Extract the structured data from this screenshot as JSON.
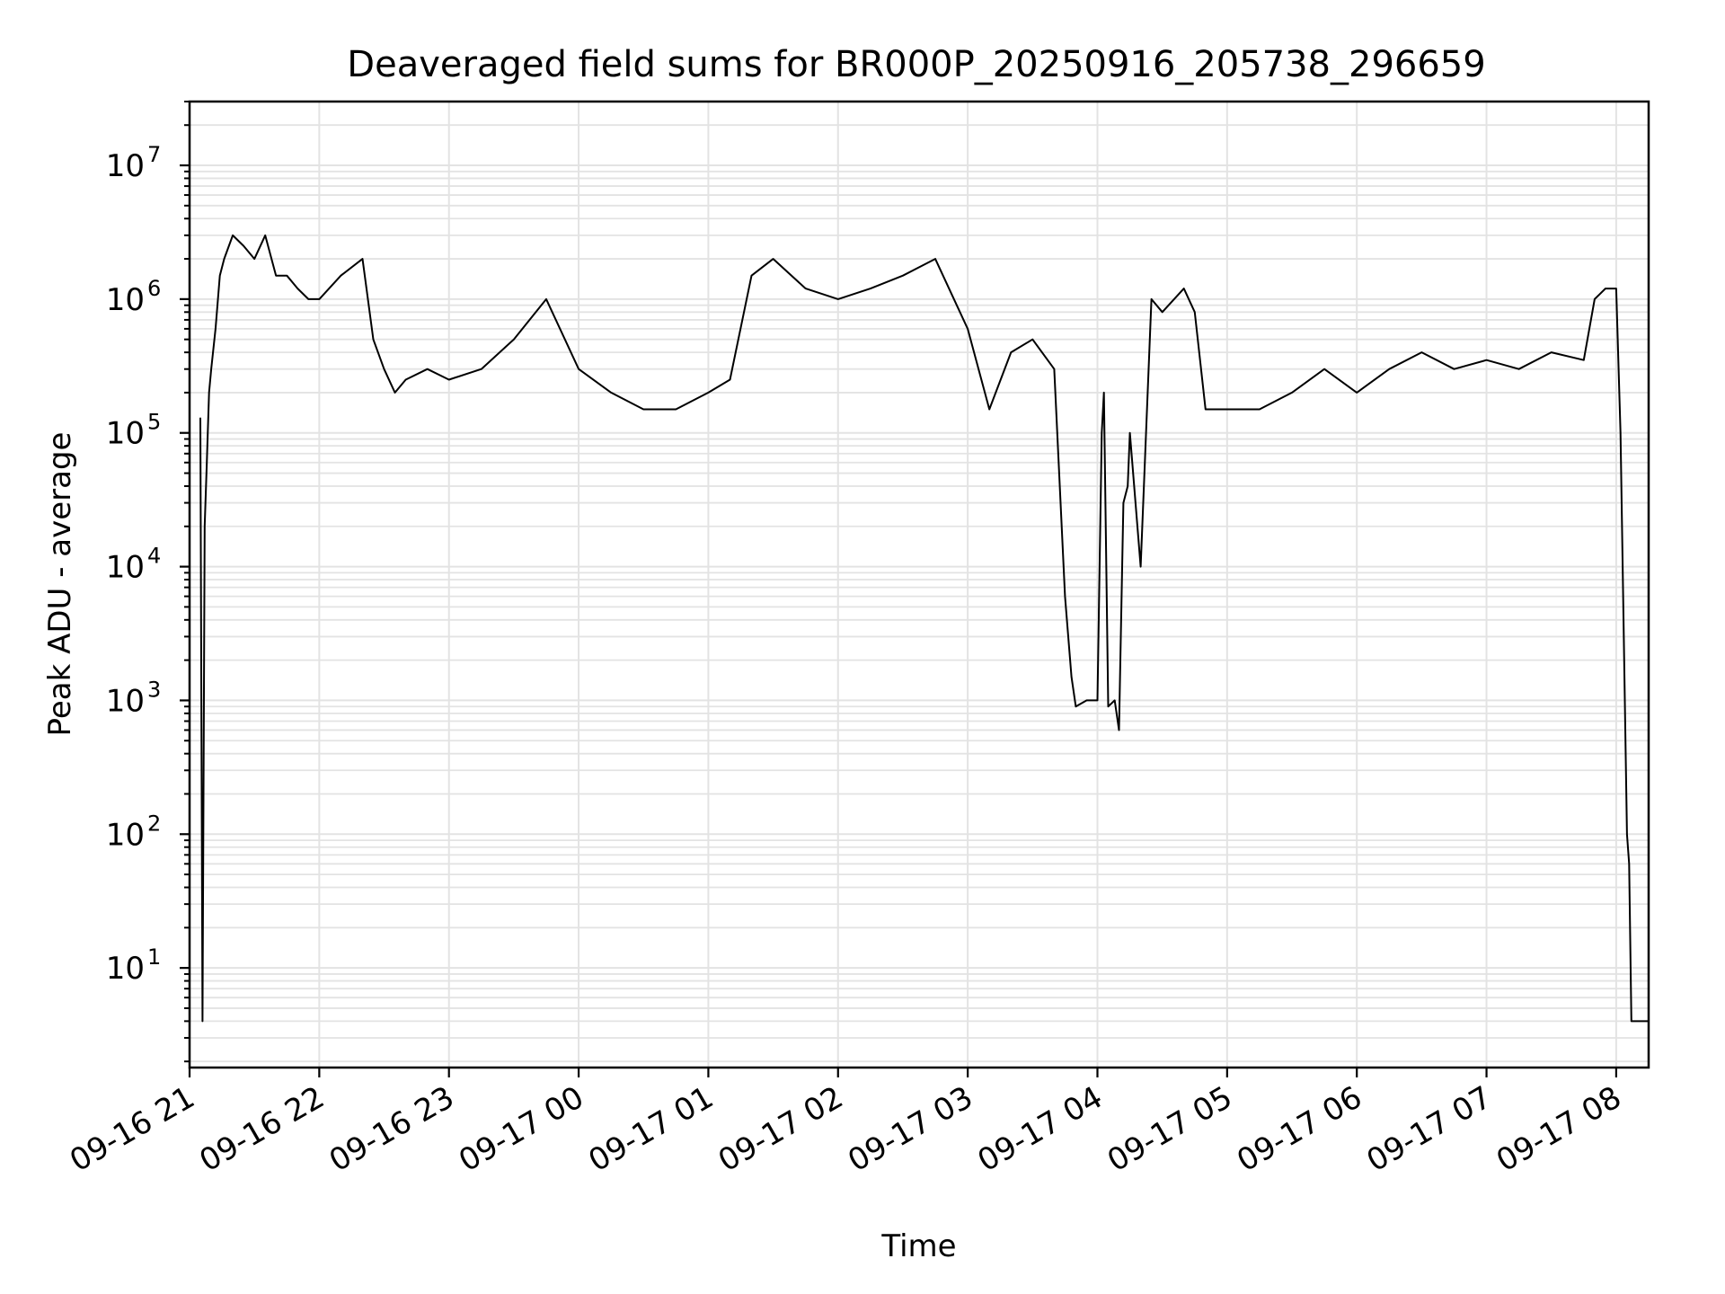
{
  "chart_data": {
    "type": "line",
    "title": "Deaveraged field sums for BR000P_20250916_205738_296659",
    "xlabel": "Time",
    "ylabel": "Peak ADU - average",
    "y_scale": "log",
    "ylim": [
      1.8,
      30000000
    ],
    "xlim": [
      "2025-09-16 21:00",
      "2025-09-17 08:15"
    ],
    "grid": true,
    "legend": "none",
    "line_color": "#000000",
    "x_ticks": [
      "09-16 21",
      "09-16 22",
      "09-16 23",
      "09-17 00",
      "09-17 01",
      "09-17 02",
      "09-17 03",
      "09-17 04",
      "09-17 05",
      "09-17 06",
      "09-17 07",
      "09-17 08"
    ],
    "y_ticks": [
      {
        "value": 10,
        "base": "10",
        "exp": "1"
      },
      {
        "value": 100,
        "base": "10",
        "exp": "2"
      },
      {
        "value": 1000,
        "base": "10",
        "exp": "3"
      },
      {
        "value": 10000,
        "base": "10",
        "exp": "4"
      },
      {
        "value": 100000,
        "base": "10",
        "exp": "5"
      },
      {
        "value": 1000000,
        "base": "10",
        "exp": "6"
      },
      {
        "value": 10000000,
        "base": "10",
        "exp": "7"
      }
    ],
    "series": [
      {
        "x": [
          "2025-09-16 21:05",
          "2025-09-16 21:06",
          "2025-09-16 21:07",
          "2025-09-16 21:08",
          "2025-09-16 21:09",
          "2025-09-16 21:10",
          "2025-09-16 21:12",
          "2025-09-16 21:14",
          "2025-09-16 21:16",
          "2025-09-16 21:20",
          "2025-09-16 21:25",
          "2025-09-16 21:30",
          "2025-09-16 21:35",
          "2025-09-16 21:40",
          "2025-09-16 21:45",
          "2025-09-16 21:50",
          "2025-09-16 21:55",
          "2025-09-16 22:00",
          "2025-09-16 22:10",
          "2025-09-16 22:20",
          "2025-09-16 22:25",
          "2025-09-16 22:30",
          "2025-09-16 22:35",
          "2025-09-16 22:40",
          "2025-09-16 22:50",
          "2025-09-16 23:00",
          "2025-09-16 23:15",
          "2025-09-16 23:30",
          "2025-09-16 23:45",
          "2025-09-17 00:00",
          "2025-09-17 00:15",
          "2025-09-17 00:30",
          "2025-09-17 00:45",
          "2025-09-17 01:00",
          "2025-09-17 01:10",
          "2025-09-17 01:20",
          "2025-09-17 01:30",
          "2025-09-17 01:45",
          "2025-09-17 02:00",
          "2025-09-17 02:15",
          "2025-09-17 02:30",
          "2025-09-17 02:45",
          "2025-09-17 03:00",
          "2025-09-17 03:10",
          "2025-09-17 03:20",
          "2025-09-17 03:30",
          "2025-09-17 03:40",
          "2025-09-17 03:45",
          "2025-09-17 03:48",
          "2025-09-17 03:50",
          "2025-09-17 03:55",
          "2025-09-17 04:00",
          "2025-09-17 04:02",
          "2025-09-17 04:03",
          "2025-09-17 04:05",
          "2025-09-17 04:08",
          "2025-09-17 04:10",
          "2025-09-17 04:12",
          "2025-09-17 04:14",
          "2025-09-17 04:15",
          "2025-09-17 04:20",
          "2025-09-17 04:25",
          "2025-09-17 04:30",
          "2025-09-17 04:40",
          "2025-09-17 04:45",
          "2025-09-17 04:50",
          "2025-09-17 05:00",
          "2025-09-17 05:15",
          "2025-09-17 05:30",
          "2025-09-17 05:45",
          "2025-09-17 06:00",
          "2025-09-17 06:15",
          "2025-09-17 06:30",
          "2025-09-17 06:45",
          "2025-09-17 07:00",
          "2025-09-17 07:15",
          "2025-09-17 07:30",
          "2025-09-17 07:45",
          "2025-09-17 07:50",
          "2025-09-17 07:55",
          "2025-09-17 08:00",
          "2025-09-17 08:02",
          "2025-09-17 08:04",
          "2025-09-17 08:05",
          "2025-09-17 08:06",
          "2025-09-17 08:07",
          "2025-09-17 08:08",
          "2025-09-17 08:15"
        ],
        "y": [
          130000,
          4,
          20000,
          60000,
          200000,
          300000,
          600000,
          1500000,
          2000000,
          3000000,
          2500000,
          2000000,
          3000000,
          1500000,
          1500000,
          1200000,
          1000000,
          1000000,
          1500000,
          2000000,
          500000,
          300000,
          200000,
          250000,
          300000,
          250000,
          300000,
          500000,
          1000000,
          300000,
          200000,
          150000,
          150000,
          200000,
          250000,
          1500000,
          2000000,
          1200000,
          1000000,
          1200000,
          1500000,
          2000000,
          600000,
          150000,
          400000,
          500000,
          300000,
          6000,
          1500,
          900,
          1000,
          1000,
          100000,
          200000,
          900,
          1000,
          600,
          30000,
          40000,
          100000,
          10000,
          1000000,
          800000,
          1200000,
          800000,
          150000,
          150000,
          150000,
          200000,
          300000,
          200000,
          300000,
          400000,
          300000,
          350000,
          300000,
          400000,
          350000,
          1000000,
          1200000,
          1200000,
          100000,
          1000,
          100,
          60,
          4,
          4,
          4
        ]
      }
    ]
  }
}
